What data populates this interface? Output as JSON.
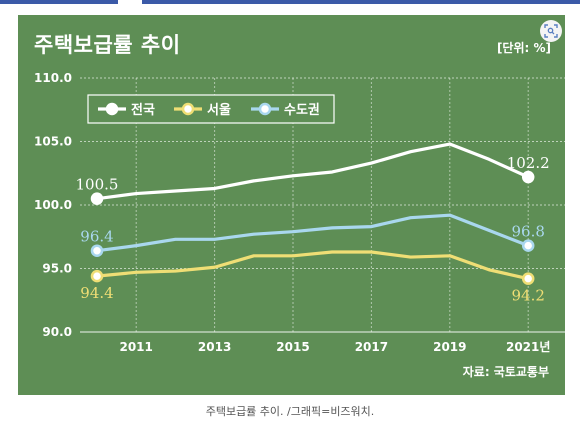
{
  "header": {
    "title": "주택보급률 추이",
    "unit": "[단위: %]",
    "source": "자료: 국토교통부"
  },
  "caption": "주택보급률 추이. /그래픽=비즈워치.",
  "icons": {
    "lens": "lens-search-icon"
  },
  "colors": {
    "background": "#5e8e55",
    "grid": "#ffffff",
    "series": [
      "#ffffff",
      "#efde75",
      "#a9d7ee"
    ]
  },
  "chart_data": {
    "type": "line",
    "title": "주택보급률 추이",
    "xlabel": "",
    "ylabel": "",
    "x": [
      2010,
      2011,
      2012,
      2013,
      2014,
      2015,
      2016,
      2017,
      2018,
      2019,
      2020,
      2021
    ],
    "x_tick_labels": [
      "2011",
      "2013",
      "2015",
      "2017",
      "2019",
      "2021년"
    ],
    "x_tick_positions": [
      2011,
      2013,
      2015,
      2017,
      2019,
      2021
    ],
    "y_tick_labels": [
      "110.0",
      "105.0",
      "100.0",
      "95.0",
      "90.0"
    ],
    "ylim": [
      90,
      110
    ],
    "grid": true,
    "legend_position": "top-left",
    "series": [
      {
        "name": "전국",
        "values": [
          100.5,
          100.9,
          101.1,
          101.3,
          101.9,
          102.3,
          102.6,
          103.3,
          104.2,
          104.8,
          103.6,
          102.2
        ]
      },
      {
        "name": "서울",
        "values": [
          94.4,
          94.7,
          94.8,
          95.1,
          96.0,
          96.0,
          96.3,
          96.3,
          95.9,
          96.0,
          94.9,
          94.2
        ]
      },
      {
        "name": "수도권",
        "values": [
          96.4,
          96.8,
          97.3,
          97.3,
          97.7,
          97.9,
          98.2,
          98.3,
          99.0,
          99.2,
          98.0,
          96.8
        ]
      }
    ],
    "annotations": [
      {
        "series": 0,
        "index": 0,
        "text": "100.5",
        "pos": "above"
      },
      {
        "series": 0,
        "index": 11,
        "text": "102.2",
        "pos": "above"
      },
      {
        "series": 1,
        "index": 0,
        "text": "94.4",
        "pos": "below"
      },
      {
        "series": 1,
        "index": 11,
        "text": "94.2",
        "pos": "below"
      },
      {
        "series": 2,
        "index": 0,
        "text": "96.4",
        "pos": "above"
      },
      {
        "series": 2,
        "index": 11,
        "text": "96.8",
        "pos": "above"
      }
    ]
  }
}
